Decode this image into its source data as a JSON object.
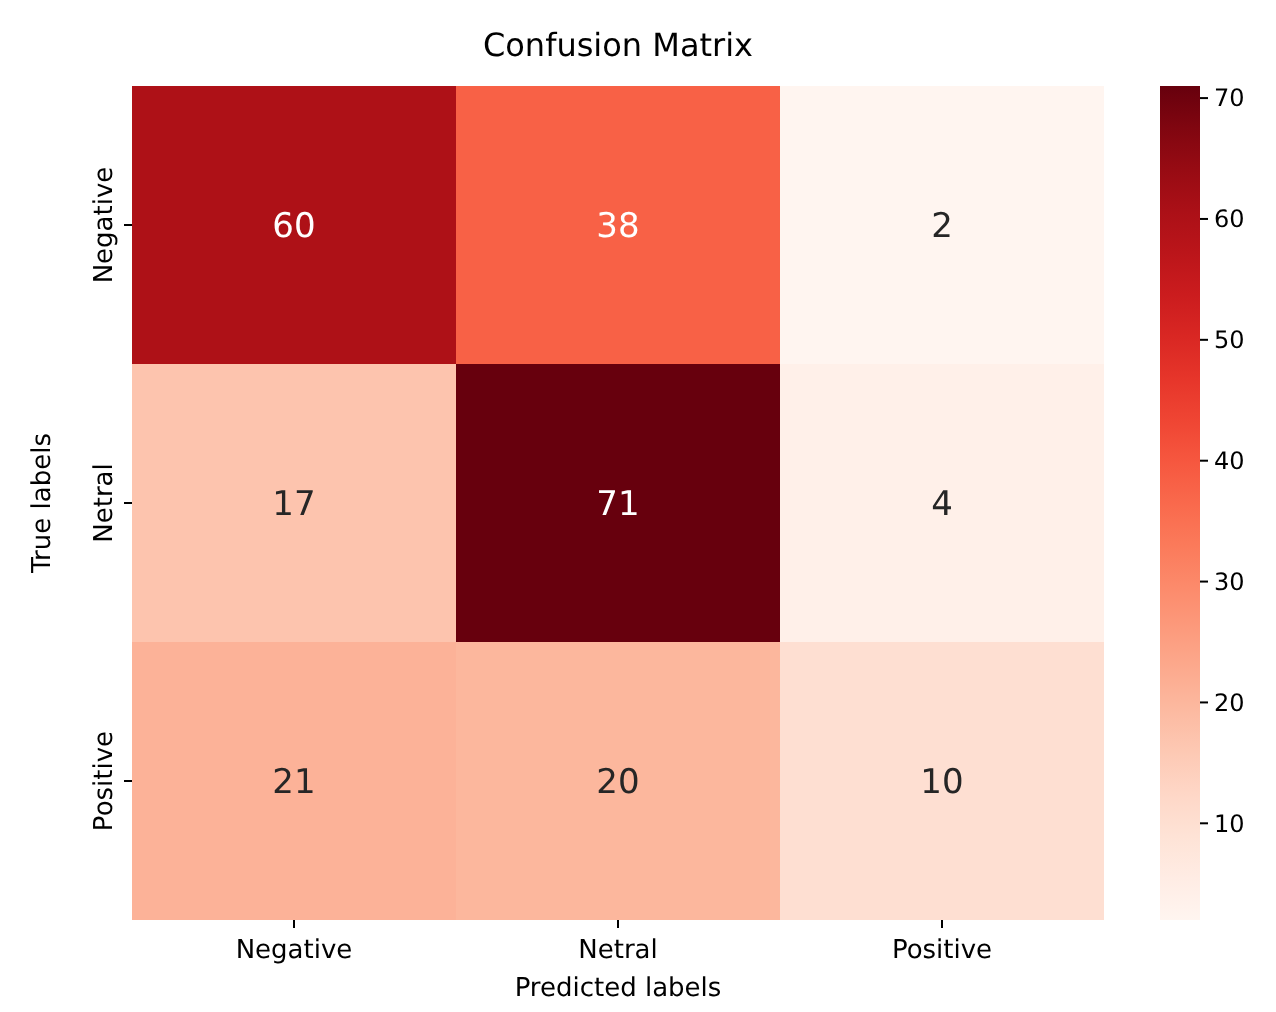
{
  "chart_data": {
    "type": "heatmap",
    "title": "Confusion Matrix",
    "xlabel": "Predicted labels",
    "ylabel": "True labels",
    "categories": [
      "Negative",
      "Netral",
      "Positive"
    ],
    "y_categories": [
      "Negative",
      "Netral",
      "Positive"
    ],
    "cells": [
      [
        60,
        38,
        2
      ],
      [
        17,
        71,
        4
      ],
      [
        21,
        20,
        10
      ]
    ],
    "data_labels": true,
    "clim": [
      2,
      71
    ],
    "cticks": [
      10,
      20,
      30,
      40,
      50,
      60,
      70
    ]
  }
}
